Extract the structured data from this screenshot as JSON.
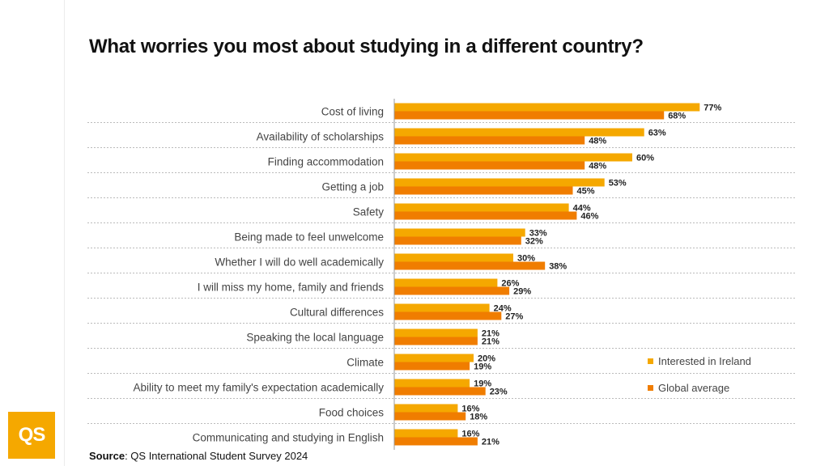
{
  "title": "What worries you most about studying in a different country?",
  "source": {
    "label": "Source",
    "text": ": QS International Student Survey 2024"
  },
  "logo": "QS",
  "colors": {
    "ireland": "#F5A800",
    "global": "#F07D00",
    "divider": "#bbbbbb"
  },
  "chart_data": {
    "type": "bar",
    "orientation": "horizontal",
    "categories": [
      "Cost of living",
      "Availability of scholarships",
      "Finding accommodation",
      "Getting a job",
      "Safety",
      "Being made to feel unwelcome",
      "Whether I will do well academically",
      "I will miss my home, family and friends",
      "Cultural differences",
      "Speaking the local language",
      "Climate",
      "Ability to meet my family's expectation academically",
      "Food choices",
      "Communicating and studying in English"
    ],
    "series": [
      {
        "name": "Interested in Ireland",
        "color": "#F5A800",
        "values": [
          77,
          63,
          60,
          53,
          44,
          33,
          30,
          26,
          24,
          21,
          20,
          19,
          16,
          16
        ]
      },
      {
        "name": "Global average",
        "color": "#F07D00",
        "values": [
          68,
          48,
          48,
          45,
          46,
          32,
          38,
          29,
          27,
          21,
          19,
          23,
          18,
          21
        ]
      }
    ],
    "value_suffix": "%",
    "legend_position": "bottom-right",
    "xlim": [
      0,
      100
    ]
  }
}
